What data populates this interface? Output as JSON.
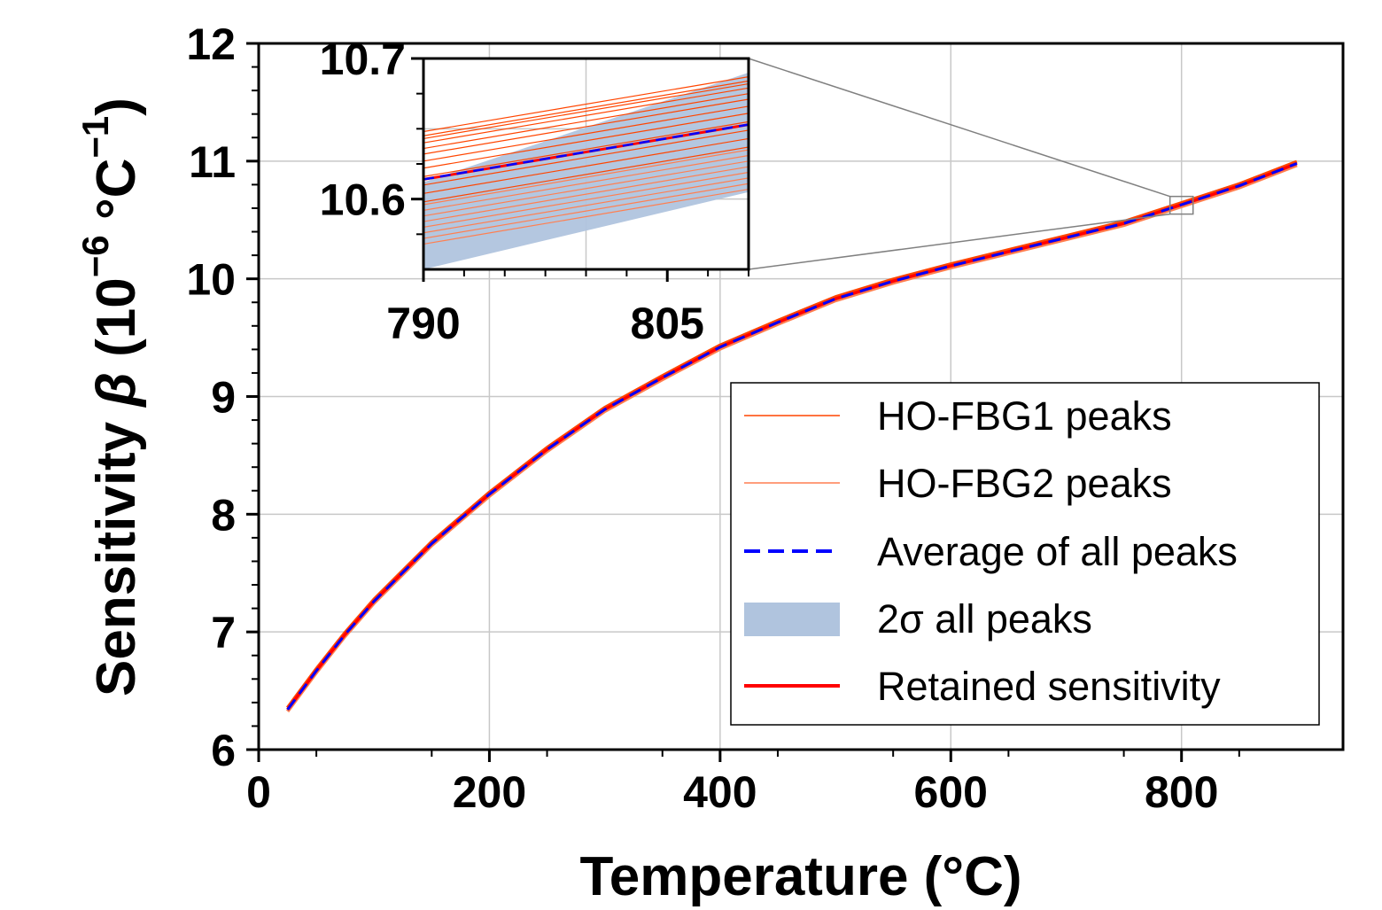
{
  "chart_data": {
    "type": "line",
    "xlabel": "Temperature (°C)",
    "ylabel": {
      "prefix": "Sensitivity ",
      "symbol": "β",
      "open": " (10",
      "exp1": "−6",
      "mid": " °C",
      "exp2": "−1",
      "close": ")"
    },
    "xlim": [
      0,
      940
    ],
    "ylim": [
      6,
      12
    ],
    "xticks": [
      0,
      200,
      400,
      600,
      800
    ],
    "yticks": [
      6,
      7,
      8,
      9,
      10,
      11,
      12
    ],
    "grid": true,
    "legend_position": "lower-right",
    "colors": {
      "hofbg1": "#ff4500",
      "hofbg2": "#ff7f50",
      "average": "#0000ff",
      "band": "#b0c4de",
      "retained": "#ff0000"
    },
    "series": [
      {
        "name": "HO-FBG1 peaks",
        "style": "thin-solid",
        "color": "#ff4500"
      },
      {
        "name": "HO-FBG2 peaks",
        "style": "thin-solid",
        "color": "#ff7f50"
      },
      {
        "name": "Average of all peaks",
        "style": "dashed",
        "color": "#0000ff"
      },
      {
        "name": "2σ all peaks",
        "style": "band",
        "color": "#b0c4de"
      },
      {
        "name": "Retained sensitivity",
        "style": "solid",
        "color": "#ff0000"
      }
    ],
    "average_curve": {
      "x": [
        25,
        50,
        75,
        100,
        150,
        200,
        250,
        300,
        350,
        400,
        450,
        500,
        550,
        600,
        650,
        700,
        750,
        800,
        850,
        900
      ],
      "y": [
        6.34,
        6.67,
        6.98,
        7.26,
        7.75,
        8.17,
        8.55,
        8.89,
        9.16,
        9.42,
        9.63,
        9.83,
        9.98,
        10.11,
        10.23,
        10.35,
        10.47,
        10.63,
        10.79,
        10.98
      ]
    },
    "inset": {
      "xlim": [
        790,
        810
      ],
      "ylim": [
        10.55,
        10.7
      ],
      "xticks": [
        790,
        805
      ],
      "yticks": [
        10.6,
        10.7
      ],
      "average_line": {
        "x": [
          790,
          810
        ],
        "y": [
          10.614,
          10.653
        ]
      },
      "band": {
        "x": [
          790,
          810
        ],
        "lower": [
          10.55,
          10.605
        ],
        "upper": [
          10.612,
          10.69
        ]
      },
      "hofbg1_offsets": [
        -0.016,
        -0.01,
        -0.004,
        0.002,
        0.008,
        0.013,
        0.018,
        0.022,
        0.026,
        0.029,
        0.031,
        0.034
      ],
      "hofbg2_offsets": [
        -0.046,
        -0.042,
        -0.038,
        -0.034,
        -0.03,
        -0.026,
        -0.022,
        -0.018
      ]
    }
  }
}
